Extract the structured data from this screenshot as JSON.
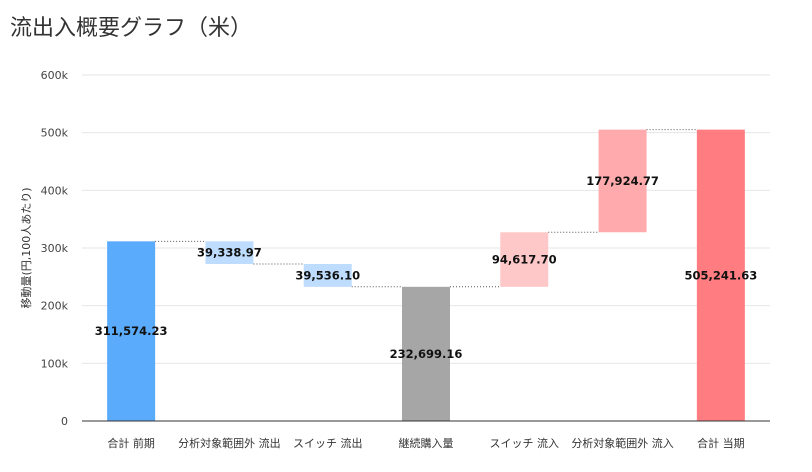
{
  "chart_data": {
    "type": "waterfall",
    "title": "流出入概要グラフ（米）",
    "ylabel": "移動量(円,100人あたり)",
    "ylim": [
      0,
      600000
    ],
    "yticks": [
      0,
      100000,
      200000,
      300000,
      400000,
      500000,
      600000
    ],
    "ytick_labels": [
      "0",
      "100k",
      "200k",
      "300k",
      "400k",
      "500k",
      "600k"
    ],
    "grid": true,
    "bars": [
      {
        "label": "合計 前期",
        "kind": "total",
        "base": 0,
        "value": 311574.23,
        "value_label": "311,574.23",
        "color": "#5aabfb"
      },
      {
        "label": "分析対象範囲外 流出",
        "kind": "decrease",
        "base": 272235.26,
        "value": 39338.97,
        "value_label": "39,338.97",
        "color": "#bedcfd"
      },
      {
        "label": "スイッチ 流出",
        "kind": "decrease",
        "base": 232699.16,
        "value": 39536.1,
        "value_label": "39,536.10",
        "color": "#bedcfd"
      },
      {
        "label": "継続購入量",
        "kind": "total",
        "base": 0,
        "value": 232699.16,
        "value_label": "232,699.16",
        "color": "#a6a6a6"
      },
      {
        "label": "スイッチ 流入",
        "kind": "increase",
        "base": 232699.16,
        "value": 94617.7,
        "value_label": "94,617.70",
        "color": "#fec8c9"
      },
      {
        "label": "分析対象範囲外 流入",
        "kind": "increase",
        "base": 327316.86,
        "value": 177924.77,
        "value_label": "177,924.77",
        "color": "#ffaaac"
      },
      {
        "label": "合計 当期",
        "kind": "total",
        "base": 0,
        "value": 505241.63,
        "value_label": "505,241.63",
        "color": "#ff7c80"
      }
    ]
  }
}
